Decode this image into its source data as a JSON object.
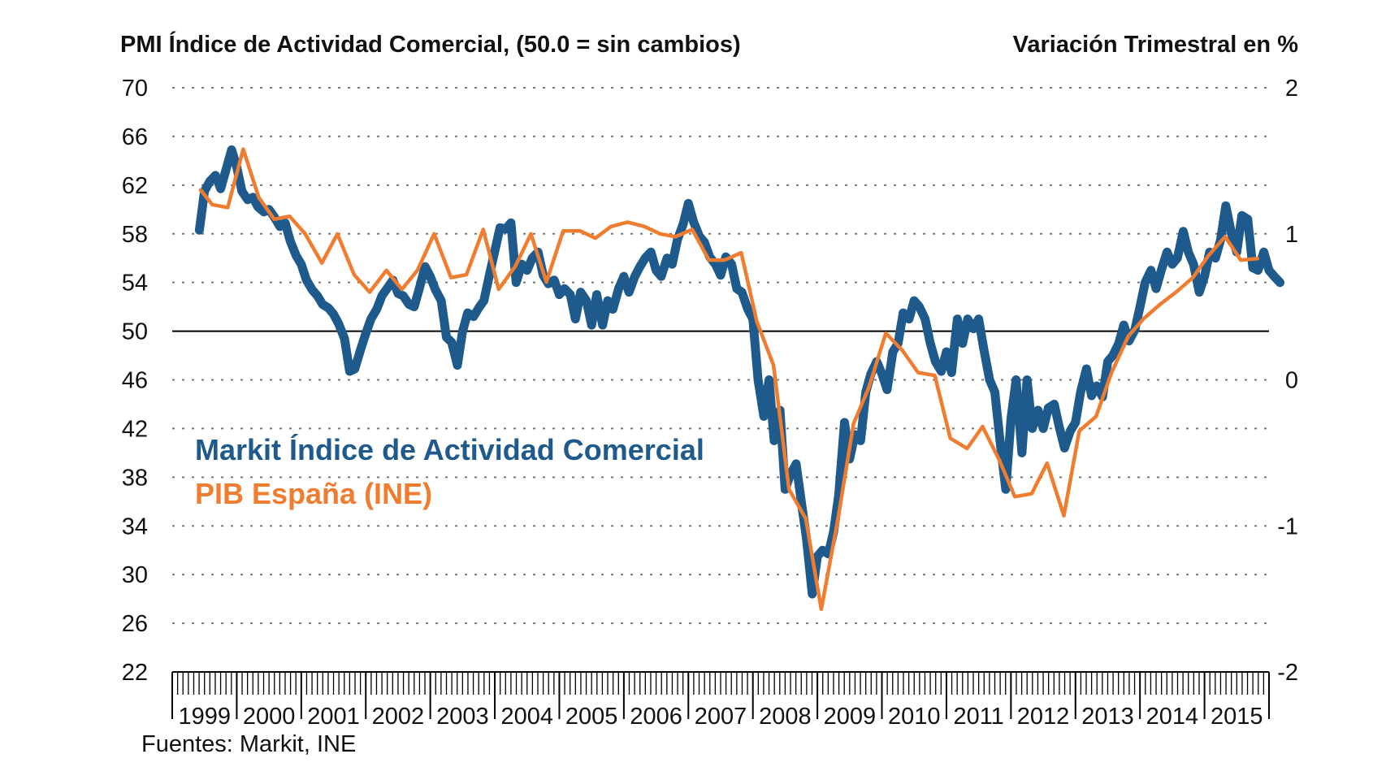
{
  "chart_data": {
    "type": "line",
    "title_left": "PMI Índice de Actividad Comercial,  (50.0 = sin cambios)",
    "title_right": "Variación Trimestral en %",
    "source": "Fuentes: Markit, INE",
    "x_categories": [
      "1999",
      "2000",
      "2001",
      "2002",
      "2003",
      "2004",
      "2005",
      "2006",
      "2007",
      "2008",
      "2009",
      "2010",
      "2011",
      "2012",
      "2013",
      "2014",
      "2015"
    ],
    "x_range": [
      1999,
      2016
    ],
    "left_axis": {
      "min": 22,
      "max": 70,
      "ticks": [
        70,
        66,
        62,
        58,
        54,
        50,
        46,
        42,
        38,
        34,
        30,
        26,
        22
      ],
      "reference_line": 50
    },
    "right_axis": {
      "min": -2,
      "max": 2,
      "ticks": [
        2,
        1,
        0,
        -1,
        -2
      ]
    },
    "grid": "horizontal-dotted",
    "legend": {
      "placement": "center-left"
    },
    "series": [
      {
        "name": "Markit Índice de Actividad Comercial",
        "axis": "left",
        "color": "#1f5a8c",
        "points": [
          [
            1999.42,
            58.3
          ],
          [
            1999.5,
            61.5
          ],
          [
            1999.58,
            62.3
          ],
          [
            1999.67,
            62.8
          ],
          [
            1999.75,
            61.7
          ],
          [
            1999.83,
            63.2
          ],
          [
            1999.92,
            64.9
          ],
          [
            2000.0,
            63.5
          ],
          [
            2000.08,
            61.5
          ],
          [
            2000.17,
            60.8
          ],
          [
            2000.25,
            61.0
          ],
          [
            2000.33,
            60.2
          ],
          [
            2000.42,
            59.8
          ],
          [
            2000.5,
            60.0
          ],
          [
            2000.58,
            59.4
          ],
          [
            2000.67,
            58.6
          ],
          [
            2000.75,
            58.9
          ],
          [
            2000.83,
            57.4
          ],
          [
            2000.92,
            56.2
          ],
          [
            2001.0,
            55.5
          ],
          [
            2001.08,
            54.2
          ],
          [
            2001.17,
            53.4
          ],
          [
            2001.25,
            52.9
          ],
          [
            2001.33,
            52.2
          ],
          [
            2001.42,
            51.9
          ],
          [
            2001.5,
            51.4
          ],
          [
            2001.58,
            50.6
          ],
          [
            2001.67,
            49.4
          ],
          [
            2001.75,
            46.7
          ],
          [
            2001.83,
            46.9
          ],
          [
            2001.92,
            48.5
          ],
          [
            2002.0,
            49.8
          ],
          [
            2002.08,
            51.0
          ],
          [
            2002.17,
            51.8
          ],
          [
            2002.25,
            52.9
          ],
          [
            2002.33,
            53.5
          ],
          [
            2002.42,
            54.2
          ],
          [
            2002.5,
            53.1
          ],
          [
            2002.58,
            52.9
          ],
          [
            2002.67,
            52.2
          ],
          [
            2002.75,
            52.0
          ],
          [
            2002.83,
            53.5
          ],
          [
            2002.92,
            55.3
          ],
          [
            2003.0,
            54.5
          ],
          [
            2003.08,
            53.4
          ],
          [
            2003.17,
            52.5
          ],
          [
            2003.25,
            49.5
          ],
          [
            2003.33,
            49.1
          ],
          [
            2003.42,
            47.2
          ],
          [
            2003.5,
            50.0
          ],
          [
            2003.58,
            51.5
          ],
          [
            2003.67,
            51.2
          ],
          [
            2003.75,
            51.9
          ],
          [
            2003.83,
            52.5
          ],
          [
            2003.92,
            54.7
          ],
          [
            2004.0,
            56.6
          ],
          [
            2004.08,
            58.5
          ],
          [
            2004.17,
            58.4
          ],
          [
            2004.25,
            58.9
          ],
          [
            2004.33,
            54.0
          ],
          [
            2004.42,
            55.5
          ],
          [
            2004.5,
            55.0
          ],
          [
            2004.58,
            56.0
          ],
          [
            2004.67,
            56.5
          ],
          [
            2004.75,
            54.6
          ],
          [
            2004.83,
            53.9
          ],
          [
            2004.92,
            54.2
          ],
          [
            2005.0,
            53.0
          ],
          [
            2005.08,
            53.5
          ],
          [
            2005.17,
            53.0
          ],
          [
            2005.25,
            51.0
          ],
          [
            2005.33,
            53.2
          ],
          [
            2005.42,
            52.5
          ],
          [
            2005.5,
            50.5
          ],
          [
            2005.58,
            53.0
          ],
          [
            2005.67,
            50.5
          ],
          [
            2005.75,
            52.5
          ],
          [
            2005.83,
            51.8
          ],
          [
            2005.92,
            53.5
          ],
          [
            2006.0,
            54.5
          ],
          [
            2006.08,
            53.2
          ],
          [
            2006.17,
            54.5
          ],
          [
            2006.25,
            55.3
          ],
          [
            2006.33,
            56.0
          ],
          [
            2006.42,
            56.5
          ],
          [
            2006.5,
            55.0
          ],
          [
            2006.58,
            54.5
          ],
          [
            2006.67,
            56.0
          ],
          [
            2006.75,
            55.5
          ],
          [
            2006.83,
            57.5
          ],
          [
            2006.92,
            58.8
          ],
          [
            2007.0,
            60.5
          ],
          [
            2007.08,
            59.0
          ],
          [
            2007.17,
            57.8
          ],
          [
            2007.25,
            57.3
          ],
          [
            2007.33,
            56.1
          ],
          [
            2007.42,
            55.5
          ],
          [
            2007.5,
            54.6
          ],
          [
            2007.58,
            56.1
          ],
          [
            2007.67,
            55.5
          ],
          [
            2007.75,
            53.5
          ],
          [
            2007.83,
            53.2
          ],
          [
            2007.92,
            51.8
          ],
          [
            2008.0,
            51.0
          ],
          [
            2008.08,
            46.0
          ],
          [
            2008.17,
            43.0
          ],
          [
            2008.25,
            46.0
          ],
          [
            2008.33,
            41.0
          ],
          [
            2008.42,
            43.5
          ],
          [
            2008.5,
            37.0
          ],
          [
            2008.58,
            38.2
          ],
          [
            2008.67,
            39.1
          ],
          [
            2008.75,
            36.0
          ],
          [
            2008.83,
            33.0
          ],
          [
            2008.92,
            28.4
          ],
          [
            2009.0,
            31.5
          ],
          [
            2009.08,
            32.0
          ],
          [
            2009.17,
            31.7
          ],
          [
            2009.25,
            33.5
          ],
          [
            2009.33,
            36.5
          ],
          [
            2009.42,
            42.5
          ],
          [
            2009.5,
            39.5
          ],
          [
            2009.58,
            41.5
          ],
          [
            2009.67,
            41.0
          ],
          [
            2009.75,
            45.0
          ],
          [
            2009.83,
            46.5
          ],
          [
            2009.92,
            47.5
          ],
          [
            2010.0,
            46.5
          ],
          [
            2010.08,
            45.2
          ],
          [
            2010.17,
            48.3
          ],
          [
            2010.25,
            49.0
          ],
          [
            2010.33,
            51.5
          ],
          [
            2010.42,
            51.0
          ],
          [
            2010.5,
            52.5
          ],
          [
            2010.58,
            52.0
          ],
          [
            2010.67,
            51.0
          ],
          [
            2010.75,
            49.0
          ],
          [
            2010.83,
            47.5
          ],
          [
            2010.92,
            46.7
          ],
          [
            2011.0,
            48.3
          ],
          [
            2011.08,
            46.6
          ],
          [
            2011.17,
            51.0
          ],
          [
            2011.25,
            49.0
          ],
          [
            2011.33,
            51.0
          ],
          [
            2011.42,
            50.2
          ],
          [
            2011.5,
            51.0
          ],
          [
            2011.58,
            48.5
          ],
          [
            2011.67,
            46.0
          ],
          [
            2011.75,
            45.0
          ],
          [
            2011.83,
            41.0
          ],
          [
            2011.92,
            37.0
          ],
          [
            2012.0,
            42.8
          ],
          [
            2012.08,
            46.0
          ],
          [
            2012.17,
            40.0
          ],
          [
            2012.25,
            46.0
          ],
          [
            2012.33,
            42.0
          ],
          [
            2012.42,
            43.5
          ],
          [
            2012.5,
            42.0
          ],
          [
            2012.58,
            43.7
          ],
          [
            2012.67,
            44.0
          ],
          [
            2012.75,
            42.1
          ],
          [
            2012.83,
            40.4
          ],
          [
            2012.92,
            41.8
          ],
          [
            2013.0,
            42.5
          ],
          [
            2013.08,
            45.0
          ],
          [
            2013.17,
            46.9
          ],
          [
            2013.25,
            44.7
          ],
          [
            2013.33,
            45.5
          ],
          [
            2013.42,
            44.6
          ],
          [
            2013.5,
            47.5
          ],
          [
            2013.58,
            48.0
          ],
          [
            2013.67,
            49.0
          ],
          [
            2013.75,
            50.5
          ],
          [
            2013.83,
            49.2
          ],
          [
            2013.92,
            50.1
          ],
          [
            2014.0,
            52.0
          ],
          [
            2014.08,
            54.0
          ],
          [
            2014.17,
            55.0
          ],
          [
            2014.25,
            53.5
          ],
          [
            2014.33,
            55.0
          ],
          [
            2014.42,
            56.5
          ],
          [
            2014.5,
            55.5
          ],
          [
            2014.58,
            56.0
          ],
          [
            2014.67,
            58.2
          ],
          [
            2014.75,
            56.5
          ],
          [
            2014.83,
            55.5
          ],
          [
            2014.92,
            53.2
          ],
          [
            2015.0,
            54.5
          ],
          [
            2015.08,
            56.5
          ],
          [
            2015.17,
            56.0
          ],
          [
            2015.25,
            57.5
          ],
          [
            2015.33,
            60.3
          ],
          [
            2015.42,
            58.0
          ],
          [
            2015.5,
            56.5
          ],
          [
            2015.58,
            59.5
          ],
          [
            2015.67,
            59.2
          ],
          [
            2015.75,
            55.2
          ],
          [
            2015.83,
            55.0
          ],
          [
            2015.92,
            56.5
          ],
          [
            2016.0,
            55.0
          ],
          [
            2016.08,
            54.5
          ],
          [
            2016.17,
            54.0
          ]
        ]
      },
      {
        "name": "PIB España (INE)",
        "axis": "right",
        "color": "#f07c2f",
        "points": [
          [
            1999.44,
            1.3
          ],
          [
            1999.62,
            1.2
          ],
          [
            1999.86,
            1.18
          ],
          [
            2000.1,
            1.58
          ],
          [
            2000.34,
            1.25
          ],
          [
            2000.58,
            1.1
          ],
          [
            2000.82,
            1.12
          ],
          [
            2001.06,
            1.0
          ],
          [
            2001.32,
            0.8
          ],
          [
            2001.56,
            1.0
          ],
          [
            2001.82,
            0.72
          ],
          [
            2002.06,
            0.6
          ],
          [
            2002.32,
            0.75
          ],
          [
            2002.56,
            0.62
          ],
          [
            2002.8,
            0.75
          ],
          [
            2003.06,
            1.0
          ],
          [
            2003.32,
            0.7
          ],
          [
            2003.56,
            0.72
          ],
          [
            2003.82,
            1.03
          ],
          [
            2004.06,
            0.62
          ],
          [
            2004.32,
            0.78
          ],
          [
            2004.56,
            1.0
          ],
          [
            2004.8,
            0.67
          ],
          [
            2005.06,
            1.02
          ],
          [
            2005.32,
            1.02
          ],
          [
            2005.56,
            0.97
          ],
          [
            2005.8,
            1.05
          ],
          [
            2006.06,
            1.08
          ],
          [
            2006.32,
            1.05
          ],
          [
            2006.56,
            1.0
          ],
          [
            2006.8,
            0.98
          ],
          [
            2007.06,
            1.03
          ],
          [
            2007.32,
            0.82
          ],
          [
            2007.56,
            0.82
          ],
          [
            2007.82,
            0.87
          ],
          [
            2008.06,
            0.4
          ],
          [
            2008.32,
            0.1
          ],
          [
            2008.56,
            -0.75
          ],
          [
            2008.82,
            -0.95
          ],
          [
            2009.06,
            -1.57
          ],
          [
            2009.32,
            -0.95
          ],
          [
            2009.56,
            -0.3
          ],
          [
            2009.8,
            -0.05
          ],
          [
            2010.06,
            0.32
          ],
          [
            2010.32,
            0.2
          ],
          [
            2010.56,
            0.05
          ],
          [
            2010.82,
            0.03
          ],
          [
            2011.06,
            -0.4
          ],
          [
            2011.32,
            -0.47
          ],
          [
            2011.56,
            -0.32
          ],
          [
            2011.82,
            -0.55
          ],
          [
            2012.06,
            -0.8
          ],
          [
            2012.32,
            -0.78
          ],
          [
            2012.56,
            -0.57
          ],
          [
            2012.82,
            -0.93
          ],
          [
            2013.06,
            -0.35
          ],
          [
            2013.32,
            -0.25
          ],
          [
            2013.56,
            0.05
          ],
          [
            2013.82,
            0.3
          ],
          [
            2014.06,
            0.42
          ],
          [
            2014.32,
            0.52
          ],
          [
            2014.56,
            0.6
          ],
          [
            2014.82,
            0.7
          ],
          [
            2015.06,
            0.85
          ],
          [
            2015.32,
            0.98
          ],
          [
            2015.56,
            0.82
          ],
          [
            2015.82,
            0.83
          ]
        ]
      }
    ]
  }
}
